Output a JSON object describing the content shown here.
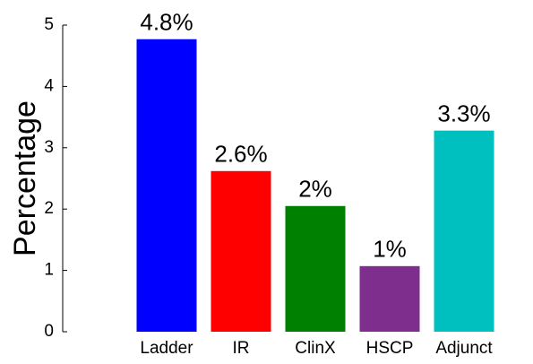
{
  "chart_data": {
    "type": "bar",
    "ylabel": "Percentage",
    "categories": [
      "Ladder",
      "IR",
      "ClinX",
      "HSCP",
      "Adjunct"
    ],
    "values": [
      4.77,
      2.62,
      2.05,
      1.07,
      3.28
    ],
    "value_labels": [
      "4.8%",
      "2.6%",
      "2%",
      "1%",
      "3.3%"
    ],
    "colors": [
      "#0000ff",
      "#ff0000",
      "#008000",
      "#7e2f8e",
      "#00bfbf"
    ],
    "ylim": [
      0,
      5
    ],
    "yticks": [
      0,
      1,
      2,
      3,
      4,
      5
    ],
    "grid": false
  }
}
